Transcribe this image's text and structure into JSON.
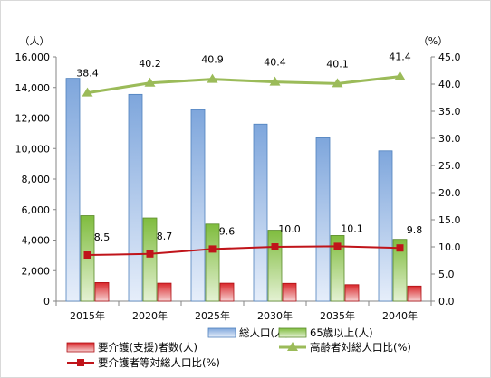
{
  "chart_data": {
    "type": "bar",
    "categories": [
      "2015年",
      "2020年",
      "2025年",
      "2030年",
      "2035年",
      "2040年"
    ],
    "left_axis": {
      "unit_label": "（人）",
      "range": [
        0,
        16000
      ],
      "step": 2000,
      "tick_labels": [
        "0",
        "2,000",
        "4,000",
        "6,000",
        "8,000",
        "10,000",
        "12,000",
        "14,000",
        "16,000"
      ]
    },
    "right_axis": {
      "unit_label": "（%）",
      "range": [
        0,
        45
      ],
      "step": 5,
      "tick_labels": [
        "0.0",
        "5.0",
        "10.0",
        "15.0",
        "20.0",
        "25.0",
        "30.0",
        "35.0",
        "40.0",
        "45.0"
      ]
    },
    "series": [
      {
        "name": "総人口(人)",
        "kind": "bar",
        "axis": "left",
        "color": "#7ea6dc",
        "values": [
          14600,
          13550,
          12550,
          11600,
          10700,
          9850
        ]
      },
      {
        "name": "65歳以上(人)",
        "kind": "bar",
        "axis": "left",
        "color": "#8cc34a",
        "values": [
          5600,
          5450,
          5050,
          4650,
          4300,
          4050
        ]
      },
      {
        "name": "要介護(支援)者数(人)",
        "kind": "bar",
        "axis": "left",
        "color": "#d9262a",
        "values": [
          1220,
          1180,
          1180,
          1170,
          1080,
          990
        ]
      },
      {
        "name": "高齢者対総人口比(%)",
        "kind": "line",
        "axis": "right",
        "color": "#9bbb59",
        "values": [
          38.4,
          40.2,
          40.9,
          40.4,
          40.1,
          41.4
        ],
        "labels": [
          "38.4",
          "40.2",
          "40.9",
          "40.4",
          "40.1",
          "41.4"
        ]
      },
      {
        "name": "要介護者等対総人口比(%)",
        "kind": "line",
        "axis": "right",
        "color": "#c0141a",
        "values": [
          8.5,
          8.7,
          9.6,
          10.0,
          10.1,
          9.8
        ],
        "labels": [
          "8.5",
          "8.7",
          "9.6",
          "10.0",
          "10.1",
          "9.8"
        ]
      }
    ],
    "legend_position": "bottom",
    "gridlines": false
  }
}
